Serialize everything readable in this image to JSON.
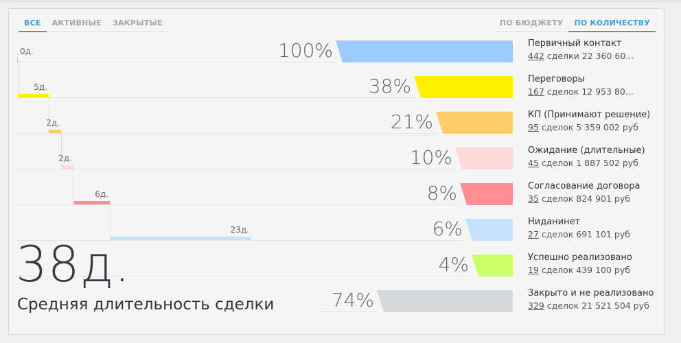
{
  "tabs_status": [
    {
      "label": "ВСЕ",
      "active": true
    },
    {
      "label": "АКТИВНЫЕ",
      "active": false
    },
    {
      "label": "ЗАКРЫТЫЕ",
      "active": false
    }
  ],
  "tabs_mode": [
    {
      "label": "ПО БЮДЖЕТУ",
      "active": false
    },
    {
      "label": "ПО КОЛИЧЕСТВУ",
      "active": true
    }
  ],
  "stages": [
    {
      "pct": "100%",
      "percent": 100,
      "color": "#9bcbfc",
      "name": "Первичный контакт",
      "count": "442",
      "rest": " сделки 22 360 60..."
    },
    {
      "pct": "38%",
      "percent": 38,
      "color": "#fff000",
      "name": "Переговоры",
      "count": "167",
      "rest": " сделок 12 953 80..."
    },
    {
      "pct": "21%",
      "percent": 21,
      "color": "#ffce6a",
      "name": "КП (Принимают решение)",
      "count": "95",
      "rest": " сделок 5 359 002 руб"
    },
    {
      "pct": "10%",
      "percent": 10,
      "color": "#ffd9d9",
      "name": "Ожидание (длительные)",
      "count": "45",
      "rest": " сделок 1 887 502 руб"
    },
    {
      "pct": "8%",
      "percent": 8,
      "color": "#ff8f92",
      "name": "Согласование договора",
      "count": "35",
      "rest": " сделок 824 901 руб"
    },
    {
      "pct": "6%",
      "percent": 6,
      "color": "#c5e3fd",
      "name": "Нидaнинет",
      "count": "27",
      "rest": " сделок 691 101 руб"
    },
    {
      "pct": "4%",
      "percent": 4,
      "color": "#ccff66",
      "name": "Успешно реализовано",
      "count": "19",
      "rest": " сделок 439 100 руб"
    },
    {
      "pct": "74%",
      "percent": 74,
      "color": "#d5d7da",
      "name": "Закрыто и не реализовано",
      "count": "329",
      "rest": " сделок 21 521 504 руб"
    }
  ],
  "durations": [
    {
      "label": "0д.",
      "days": 0
    },
    {
      "label": "5д.",
      "days": 5
    },
    {
      "label": "2д.",
      "days": 2
    },
    {
      "label": "2д.",
      "days": 2
    },
    {
      "label": "6д.",
      "days": 6
    },
    {
      "label": "23д.",
      "days": 23
    }
  ],
  "summary": {
    "days": "38д.",
    "caption": "Средняя длительность сделки"
  }
}
